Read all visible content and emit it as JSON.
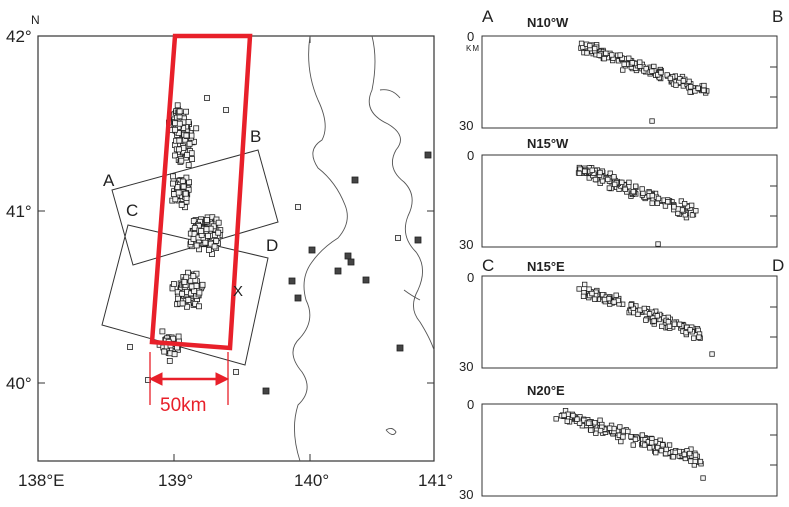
{
  "map": {
    "north_label": "N",
    "lat_labels": [
      "42°",
      "41°",
      "40°"
    ],
    "lon_labels": [
      "138°E",
      "139°",
      "140°",
      "141°"
    ],
    "section_letters": [
      "A",
      "B",
      "C",
      "D"
    ],
    "epicenter_marker": "X",
    "scale_text": "50km",
    "accent_color": "#e8202a"
  },
  "profiles": {
    "depth_unit": "KM",
    "panels": [
      {
        "left": "A",
        "right": "B",
        "orientation": "N10°W",
        "depth_top": "0",
        "depth_bottom": "30"
      },
      {
        "left": "",
        "right": "",
        "orientation": "N15°W",
        "depth_top": "0",
        "depth_bottom": "30"
      },
      {
        "left": "C",
        "right": "D",
        "orientation": "N15°E",
        "depth_top": "0",
        "depth_bottom": "30"
      },
      {
        "left": "",
        "right": "",
        "orientation": "N20°E",
        "depth_top": "0",
        "depth_bottom": "30"
      }
    ]
  }
}
